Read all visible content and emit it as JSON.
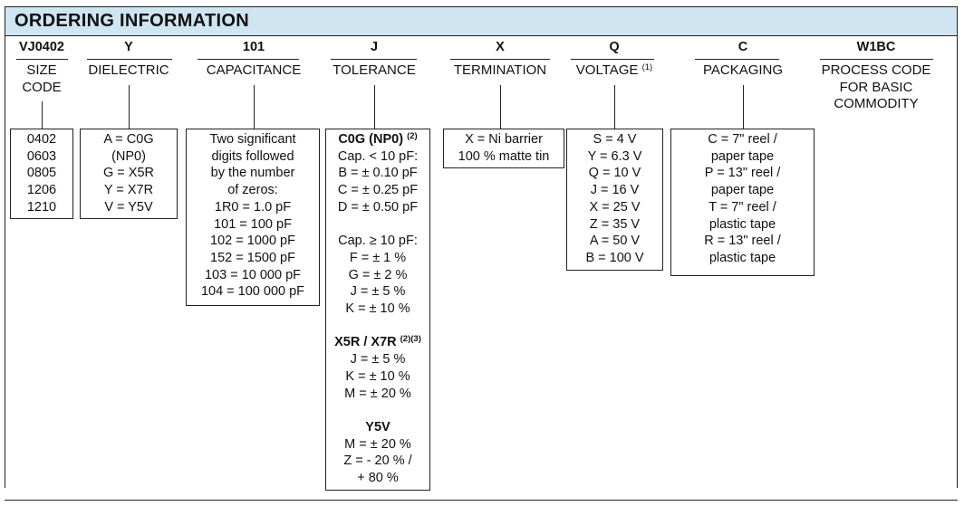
{
  "title": "ORDERING INFORMATION",
  "columns": [
    {
      "code": "VJ0402",
      "label": [
        "SIZE",
        "CODE"
      ],
      "box": [
        {
          "t": "0402"
        },
        {
          "t": "0603"
        },
        {
          "t": "0805"
        },
        {
          "t": "1206"
        },
        {
          "t": "1210"
        }
      ]
    },
    {
      "code": "Y",
      "label": [
        "DIELECTRIC"
      ],
      "box": [
        {
          "t": "A = C0G"
        },
        {
          "t": "(NP0)"
        },
        {
          "t": "G = X5R"
        },
        {
          "t": "Y = X7R"
        },
        {
          "t": "V = Y5V"
        }
      ]
    },
    {
      "code": "101",
      "label": [
        "CAPACITANCE"
      ],
      "box": [
        {
          "t": "Two significant"
        },
        {
          "t": "digits followed"
        },
        {
          "t": "by the number"
        },
        {
          "t": "of zeros:"
        },
        {
          "t": "1R0 = 1.0 pF"
        },
        {
          "t": "101 = 100 pF"
        },
        {
          "t": "102 = 1000 pF"
        },
        {
          "t": "152 = 1500 pF"
        },
        {
          "t": "103 = 10 000 pF"
        },
        {
          "t": "104 = 100 000 pF"
        }
      ]
    },
    {
      "code": "J",
      "label": [
        "TOLERANCE"
      ],
      "box": [
        {
          "t": "C0G (NP0)",
          "bold": true,
          "sup": "(2)"
        },
        {
          "t": "Cap. < 10 pF:"
        },
        {
          "t": "B = ± 0.10 pF"
        },
        {
          "t": "C = ± 0.25 pF"
        },
        {
          "t": "D = ± 0.50 pF"
        },
        {
          "t": ""
        },
        {
          "t": "Cap. ≥ 10 pF:"
        },
        {
          "t": "F = ± 1 %"
        },
        {
          "t": "G = ± 2 %"
        },
        {
          "t": "J = ± 5 %"
        },
        {
          "t": "K = ± 10 %"
        },
        {
          "t": ""
        },
        {
          "t": "X5R / X7R",
          "bold": true,
          "sup": "(2)(3)"
        },
        {
          "t": "J = ± 5 %"
        },
        {
          "t": "K = ± 10 %"
        },
        {
          "t": "M = ± 20 %"
        },
        {
          "t": ""
        },
        {
          "t": "Y5V",
          "bold": true
        },
        {
          "t": "M = ± 20 %"
        },
        {
          "t": "Z = - 20 % /"
        },
        {
          "t": "+ 80 %"
        }
      ]
    },
    {
      "code": "X",
      "label": [
        "TERMINATION"
      ],
      "box": [
        {
          "t": "X = Ni barrier"
        },
        {
          "t": "100 % matte tin"
        }
      ]
    },
    {
      "code": "Q",
      "label": [
        "VOLTAGE"
      ],
      "label_sup": "(1)",
      "box": [
        {
          "t": "S = 4 V"
        },
        {
          "t": "Y = 6.3 V"
        },
        {
          "t": "Q = 10 V"
        },
        {
          "t": "J = 16 V"
        },
        {
          "t": "X = 25 V"
        },
        {
          "t": "Z = 35 V"
        },
        {
          "t": "A = 50 V"
        },
        {
          "t": "B = 100 V"
        }
      ]
    },
    {
      "code": "C",
      "label": [
        "PACKAGING"
      ],
      "box": [
        {
          "t": "C = 7\" reel /"
        },
        {
          "t": "paper tape"
        },
        {
          "t": "P = 13\" reel /"
        },
        {
          "t": "paper tape"
        },
        {
          "t": "T = 7\" reel /"
        },
        {
          "t": "plastic tape"
        },
        {
          "t": "R = 13\" reel /"
        },
        {
          "t": "plastic tape"
        }
      ]
    },
    {
      "code": "W1BC",
      "label": [
        "PROCESS CODE",
        "FOR BASIC",
        "COMMODITY"
      ],
      "box": []
    }
  ]
}
